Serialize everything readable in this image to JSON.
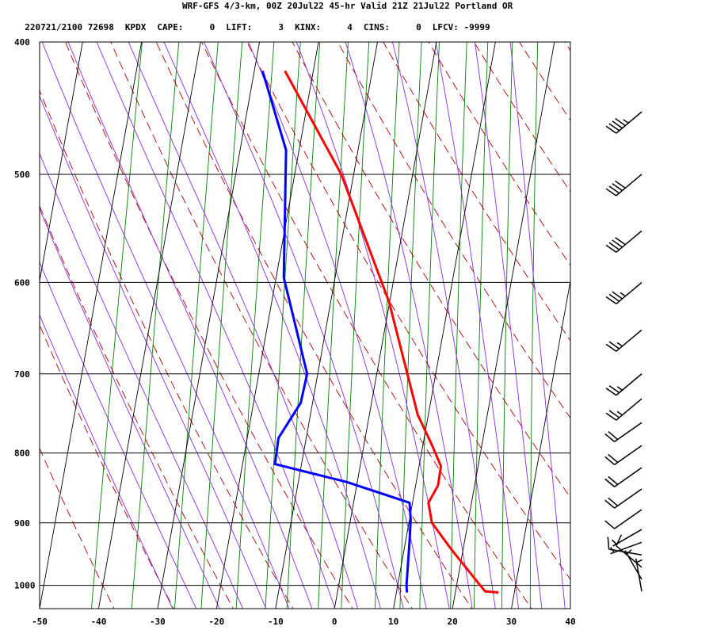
{
  "header": {
    "line1": "WRF-GFS 4/3-km, 00Z 20Jul22 45-hr Valid 21Z 21Jul22 Portland OR",
    "station_id": "220721/2100 72698",
    "station": "KPDX",
    "cape": "CAPE:     0",
    "lift": "LIFT:     3",
    "kinx": "KINX:     4",
    "cins": "CINS:     0",
    "lfcv": "LFCV: -9999"
  },
  "chart_data": {
    "type": "line",
    "title": "WRF-GFS 4/3-km, 00Z 20Jul22 45-hr Valid 21Z 21Jul22 Portland OR",
    "xlabel": "",
    "ylabel": "",
    "x_ticks": [
      -50,
      -40,
      -30,
      -20,
      -10,
      0,
      10,
      20,
      30,
      40
    ],
    "y_ticks": [
      400,
      500,
      600,
      700,
      800,
      900,
      1000
    ],
    "xlim": [
      -50,
      40
    ],
    "ylim": [
      1040,
      400
    ],
    "y_scale": "log",
    "grid": true,
    "series": [
      {
        "color": "#ff0000",
        "points": [
          [
            27.3,
            1012
          ],
          [
            25.0,
            1010
          ],
          [
            24.0,
            1000
          ],
          [
            17.9,
            940
          ],
          [
            13.9,
            900
          ],
          [
            12.7,
            870
          ],
          [
            13.8,
            845
          ],
          [
            13.7,
            818
          ],
          [
            11.6,
            790
          ],
          [
            8.2,
            750
          ],
          [
            -0.1,
            620
          ],
          [
            -12.1,
            500
          ],
          [
            -24.8,
            420
          ]
        ]
      },
      {
        "color": "#0000ff",
        "points": [
          [
            11.8,
            1012
          ],
          [
            11.5,
            1000
          ],
          [
            10.7,
            930
          ],
          [
            10.2,
            895
          ],
          [
            9.5,
            870
          ],
          [
            -1.8,
            840
          ],
          [
            -14.5,
            815
          ],
          [
            -14.7,
            780
          ],
          [
            -12.0,
            735
          ],
          [
            -11.8,
            700
          ],
          [
            -18.7,
            595
          ],
          [
            -22.2,
            480
          ],
          [
            -28.6,
            420
          ]
        ]
      }
    ],
    "background_lines": {
      "isotherm_color": "#000000",
      "dry_adiabat_color": "#aa0000",
      "moist_adiabat_color": "#8a2be2",
      "mixing_ratio_color": "#008000"
    },
    "wind_barbs": [
      {
        "p": 1010,
        "dir": 350,
        "kt": 5
      },
      {
        "p": 990,
        "dir": 330,
        "kt": 5
      },
      {
        "p": 970,
        "dir": 310,
        "kt": 10
      },
      {
        "p": 950,
        "dir": 280,
        "kt": 10
      },
      {
        "p": 930,
        "dir": 250,
        "kt": 5
      },
      {
        "p": 910,
        "dir": 240,
        "kt": 5
      },
      {
        "p": 880,
        "dir": 235,
        "kt": 10
      },
      {
        "p": 850,
        "dir": 235,
        "kt": 20
      },
      {
        "p": 820,
        "dir": 235,
        "kt": 20
      },
      {
        "p": 790,
        "dir": 235,
        "kt": 20
      },
      {
        "p": 760,
        "dir": 235,
        "kt": 20
      },
      {
        "p": 730,
        "dir": 230,
        "kt": 25
      },
      {
        "p": 700,
        "dir": 230,
        "kt": 25
      },
      {
        "p": 650,
        "dir": 230,
        "kt": 25
      },
      {
        "p": 600,
        "dir": 230,
        "kt": 35
      },
      {
        "p": 550,
        "dir": 230,
        "kt": 40
      },
      {
        "p": 500,
        "dir": 230,
        "kt": 40
      },
      {
        "p": 450,
        "dir": 230,
        "kt": 45
      }
    ]
  }
}
